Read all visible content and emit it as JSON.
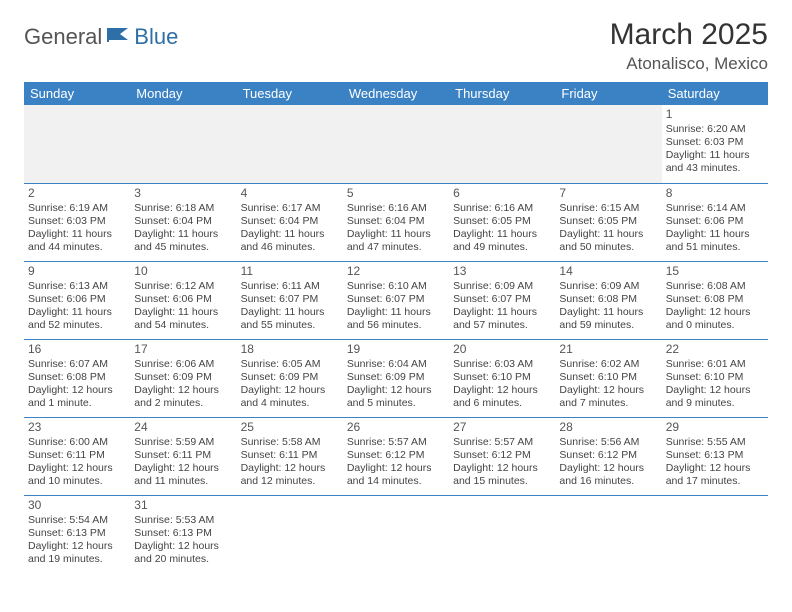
{
  "logo": {
    "part1": "General",
    "part2": "Blue"
  },
  "title": "March 2025",
  "location": "Atonalisco, Mexico",
  "colors": {
    "header_bg": "#3b82c4",
    "header_text": "#ffffff",
    "border": "#3b82c4",
    "empty_bg": "#f1f1f1",
    "logo_blue": "#2f6fa8"
  },
  "weekdays": [
    "Sunday",
    "Monday",
    "Tuesday",
    "Wednesday",
    "Thursday",
    "Friday",
    "Saturday"
  ],
  "weeks": [
    [
      null,
      null,
      null,
      null,
      null,
      null,
      {
        "d": "1",
        "sr": "Sunrise: 6:20 AM",
        "ss": "Sunset: 6:03 PM",
        "dl": "Daylight: 11 hours and 43 minutes."
      }
    ],
    [
      {
        "d": "2",
        "sr": "Sunrise: 6:19 AM",
        "ss": "Sunset: 6:03 PM",
        "dl": "Daylight: 11 hours and 44 minutes."
      },
      {
        "d": "3",
        "sr": "Sunrise: 6:18 AM",
        "ss": "Sunset: 6:04 PM",
        "dl": "Daylight: 11 hours and 45 minutes."
      },
      {
        "d": "4",
        "sr": "Sunrise: 6:17 AM",
        "ss": "Sunset: 6:04 PM",
        "dl": "Daylight: 11 hours and 46 minutes."
      },
      {
        "d": "5",
        "sr": "Sunrise: 6:16 AM",
        "ss": "Sunset: 6:04 PM",
        "dl": "Daylight: 11 hours and 47 minutes."
      },
      {
        "d": "6",
        "sr": "Sunrise: 6:16 AM",
        "ss": "Sunset: 6:05 PM",
        "dl": "Daylight: 11 hours and 49 minutes."
      },
      {
        "d": "7",
        "sr": "Sunrise: 6:15 AM",
        "ss": "Sunset: 6:05 PM",
        "dl": "Daylight: 11 hours and 50 minutes."
      },
      {
        "d": "8",
        "sr": "Sunrise: 6:14 AM",
        "ss": "Sunset: 6:06 PM",
        "dl": "Daylight: 11 hours and 51 minutes."
      }
    ],
    [
      {
        "d": "9",
        "sr": "Sunrise: 6:13 AM",
        "ss": "Sunset: 6:06 PM",
        "dl": "Daylight: 11 hours and 52 minutes."
      },
      {
        "d": "10",
        "sr": "Sunrise: 6:12 AM",
        "ss": "Sunset: 6:06 PM",
        "dl": "Daylight: 11 hours and 54 minutes."
      },
      {
        "d": "11",
        "sr": "Sunrise: 6:11 AM",
        "ss": "Sunset: 6:07 PM",
        "dl": "Daylight: 11 hours and 55 minutes."
      },
      {
        "d": "12",
        "sr": "Sunrise: 6:10 AM",
        "ss": "Sunset: 6:07 PM",
        "dl": "Daylight: 11 hours and 56 minutes."
      },
      {
        "d": "13",
        "sr": "Sunrise: 6:09 AM",
        "ss": "Sunset: 6:07 PM",
        "dl": "Daylight: 11 hours and 57 minutes."
      },
      {
        "d": "14",
        "sr": "Sunrise: 6:09 AM",
        "ss": "Sunset: 6:08 PM",
        "dl": "Daylight: 11 hours and 59 minutes."
      },
      {
        "d": "15",
        "sr": "Sunrise: 6:08 AM",
        "ss": "Sunset: 6:08 PM",
        "dl": "Daylight: 12 hours and 0 minutes."
      }
    ],
    [
      {
        "d": "16",
        "sr": "Sunrise: 6:07 AM",
        "ss": "Sunset: 6:08 PM",
        "dl": "Daylight: 12 hours and 1 minute."
      },
      {
        "d": "17",
        "sr": "Sunrise: 6:06 AM",
        "ss": "Sunset: 6:09 PM",
        "dl": "Daylight: 12 hours and 2 minutes."
      },
      {
        "d": "18",
        "sr": "Sunrise: 6:05 AM",
        "ss": "Sunset: 6:09 PM",
        "dl": "Daylight: 12 hours and 4 minutes."
      },
      {
        "d": "19",
        "sr": "Sunrise: 6:04 AM",
        "ss": "Sunset: 6:09 PM",
        "dl": "Daylight: 12 hours and 5 minutes."
      },
      {
        "d": "20",
        "sr": "Sunrise: 6:03 AM",
        "ss": "Sunset: 6:10 PM",
        "dl": "Daylight: 12 hours and 6 minutes."
      },
      {
        "d": "21",
        "sr": "Sunrise: 6:02 AM",
        "ss": "Sunset: 6:10 PM",
        "dl": "Daylight: 12 hours and 7 minutes."
      },
      {
        "d": "22",
        "sr": "Sunrise: 6:01 AM",
        "ss": "Sunset: 6:10 PM",
        "dl": "Daylight: 12 hours and 9 minutes."
      }
    ],
    [
      {
        "d": "23",
        "sr": "Sunrise: 6:00 AM",
        "ss": "Sunset: 6:11 PM",
        "dl": "Daylight: 12 hours and 10 minutes."
      },
      {
        "d": "24",
        "sr": "Sunrise: 5:59 AM",
        "ss": "Sunset: 6:11 PM",
        "dl": "Daylight: 12 hours and 11 minutes."
      },
      {
        "d": "25",
        "sr": "Sunrise: 5:58 AM",
        "ss": "Sunset: 6:11 PM",
        "dl": "Daylight: 12 hours and 12 minutes."
      },
      {
        "d": "26",
        "sr": "Sunrise: 5:57 AM",
        "ss": "Sunset: 6:12 PM",
        "dl": "Daylight: 12 hours and 14 minutes."
      },
      {
        "d": "27",
        "sr": "Sunrise: 5:57 AM",
        "ss": "Sunset: 6:12 PM",
        "dl": "Daylight: 12 hours and 15 minutes."
      },
      {
        "d": "28",
        "sr": "Sunrise: 5:56 AM",
        "ss": "Sunset: 6:12 PM",
        "dl": "Daylight: 12 hours and 16 minutes."
      },
      {
        "d": "29",
        "sr": "Sunrise: 5:55 AM",
        "ss": "Sunset: 6:13 PM",
        "dl": "Daylight: 12 hours and 17 minutes."
      }
    ],
    [
      {
        "d": "30",
        "sr": "Sunrise: 5:54 AM",
        "ss": "Sunset: 6:13 PM",
        "dl": "Daylight: 12 hours and 19 minutes."
      },
      {
        "d": "31",
        "sr": "Sunrise: 5:53 AM",
        "ss": "Sunset: 6:13 PM",
        "dl": "Daylight: 12 hours and 20 minutes."
      },
      null,
      null,
      null,
      null,
      null
    ]
  ]
}
